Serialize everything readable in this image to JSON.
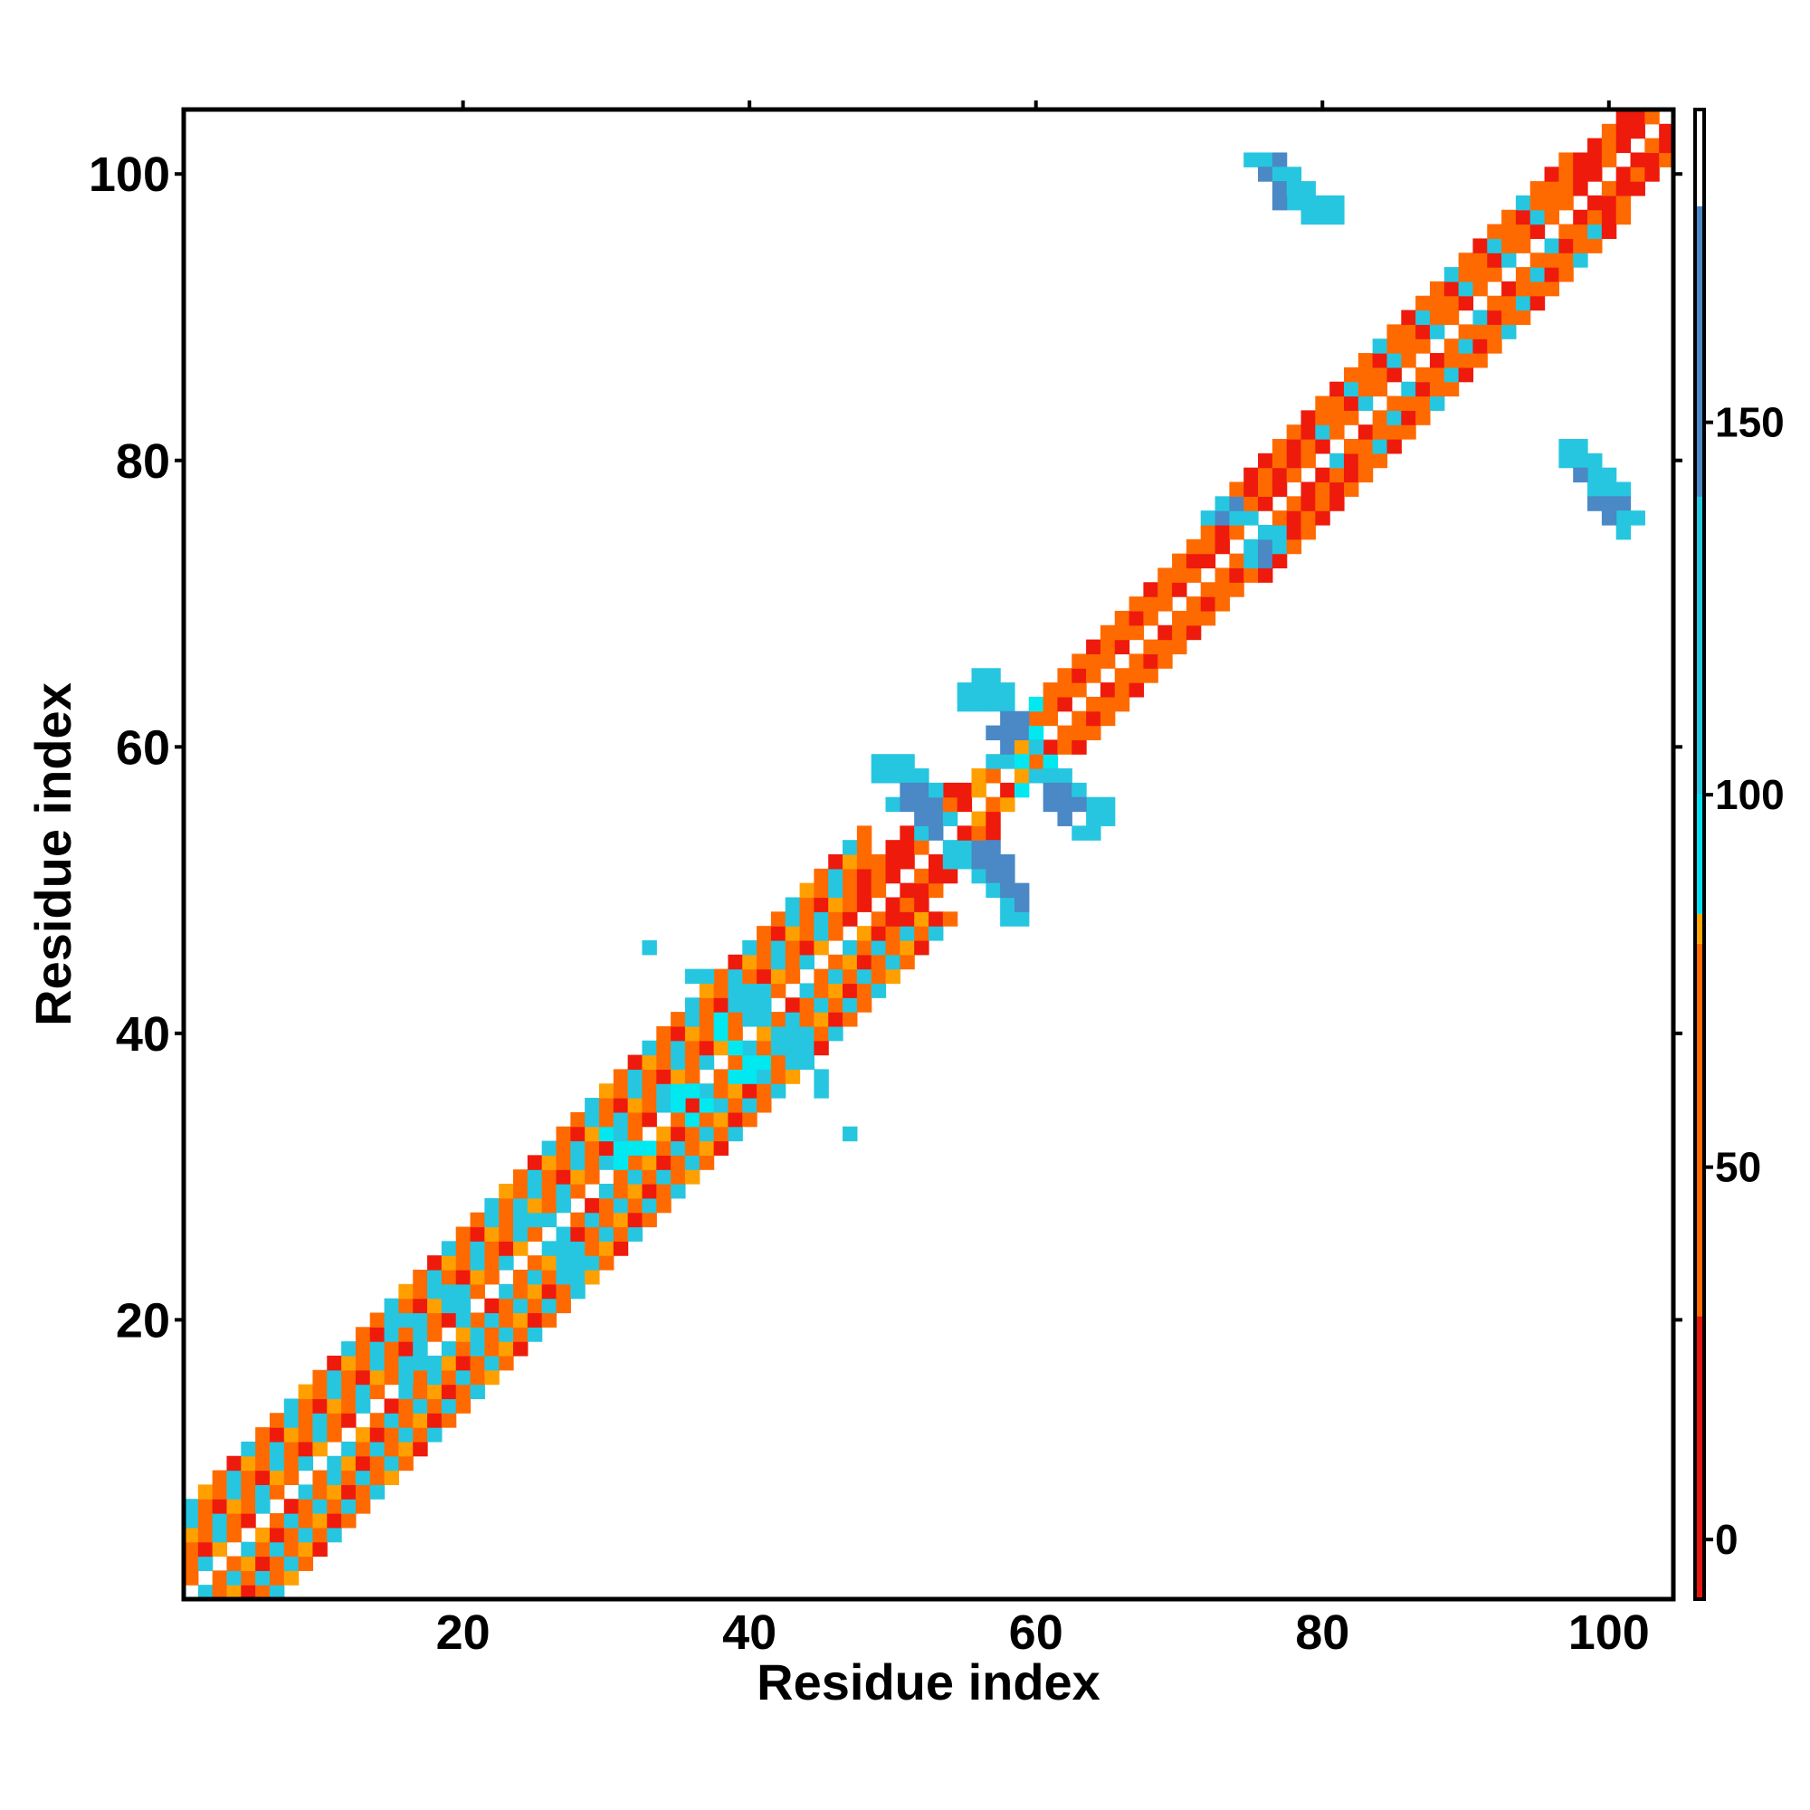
{
  "chart_data": {
    "type": "heatmap",
    "title": "",
    "xlabel": "Residue index",
    "ylabel": "Residue index",
    "xlim": [
      1,
      104
    ],
    "ylim": [
      1,
      104
    ],
    "x_ticks": [
      20,
      40,
      60,
      80,
      100
    ],
    "y_ticks": [
      20,
      40,
      60,
      80,
      100
    ],
    "grid": false,
    "legend": "none",
    "colorbar": {
      "position": "right",
      "range": [
        -8,
        192
      ],
      "ticks": [
        0,
        50,
        100,
        150
      ],
      "colors": [
        {
          "from": -8,
          "to": 30,
          "color": "#e8150c"
        },
        {
          "from": 30,
          "to": 80,
          "color": "#ff6a00"
        },
        {
          "from": 80,
          "to": 84,
          "color": "#ffa500"
        },
        {
          "from": 84,
          "to": 100,
          "color": "#00e0f0"
        },
        {
          "from": 100,
          "to": 140,
          "color": "#26c6e0"
        },
        {
          "from": 140,
          "to": 179,
          "color": "#4a8ac8"
        },
        {
          "from": 179,
          "to": 192,
          "color": "#ffffff"
        }
      ]
    },
    "palette": {
      "R": "#ee1a0c",
      "O": "#ff6a00",
      "A": "#ffa000",
      "T": "#00e8f0",
      "C": "#26c6e0",
      "B": "#4a88c6"
    },
    "value_legend": {
      "R": 10,
      "O": 50,
      "A": 82,
      "T": 92,
      "C": 120,
      "B": 160
    },
    "diagonal_bands": [
      {
        "from": 1,
        "to": 48,
        "offsets": [
          1,
          2,
          3,
          4,
          5,
          6
        ],
        "pattern": "O,R,C,O,O,C,A"
      },
      {
        "from": 48,
        "to": 54,
        "offsets": [
          1,
          2,
          3
        ],
        "pattern": "R,O,R"
      },
      {
        "from": 54,
        "to": 60,
        "offsets": [
          1,
          2
        ],
        "pattern": "O,R,A"
      },
      {
        "from": 60,
        "to": 72,
        "offsets": [
          1,
          2,
          3
        ],
        "pattern": "O,R,O,O"
      },
      {
        "from": 72,
        "to": 80,
        "offsets": [
          1,
          2,
          3,
          4
        ],
        "pattern": "R,O,O,R"
      },
      {
        "from": 80,
        "to": 97,
        "offsets": [
          1,
          2,
          3,
          4
        ],
        "pattern": "O,C,O,R,O"
      },
      {
        "from": 97,
        "to": 104,
        "offsets": [
          1,
          2,
          3
        ],
        "pattern": "R,O,R"
      }
    ],
    "blobs": [
      {
        "c": "C",
        "cells": [
          [
            56,
            65
          ],
          [
            57,
            65
          ],
          [
            55,
            64
          ],
          [
            56,
            64
          ],
          [
            57,
            64
          ],
          [
            58,
            64
          ],
          [
            55,
            63
          ],
          [
            56,
            63
          ],
          [
            57,
            63
          ],
          [
            58,
            63
          ],
          [
            58,
            62
          ],
          [
            57,
            61
          ],
          [
            58,
            61
          ],
          [
            59,
            61
          ],
          [
            60,
            60
          ],
          [
            57,
            59
          ],
          [
            58,
            59
          ]
        ]
      },
      {
        "c": "B",
        "cells": [
          [
            58,
            62
          ],
          [
            59,
            62
          ],
          [
            57,
            61
          ],
          [
            58,
            61
          ],
          [
            59,
            61
          ],
          [
            58,
            60
          ]
        ]
      },
      {
        "c": "T",
        "cells": [
          [
            60,
            63
          ],
          [
            60,
            61
          ],
          [
            59,
            59
          ],
          [
            61,
            59
          ],
          [
            61,
            58
          ],
          [
            59,
            57
          ]
        ]
      },
      {
        "c": "C",
        "cells": [
          [
            49,
            59
          ],
          [
            50,
            59
          ],
          [
            51,
            59
          ],
          [
            49,
            58
          ],
          [
            50,
            58
          ],
          [
            51,
            58
          ],
          [
            52,
            58
          ],
          [
            52,
            57
          ],
          [
            53,
            57
          ],
          [
            50,
            56
          ],
          [
            53,
            56
          ],
          [
            54,
            55
          ],
          [
            52,
            54
          ],
          [
            53,
            54
          ]
        ]
      },
      {
        "c": "B",
        "cells": [
          [
            51,
            57
          ],
          [
            52,
            57
          ],
          [
            51,
            56
          ],
          [
            52,
            56
          ],
          [
            53,
            56
          ],
          [
            52,
            55
          ],
          [
            53,
            55
          ],
          [
            53,
            54
          ]
        ]
      },
      {
        "c": "C",
        "cells": [
          [
            60,
            58
          ],
          [
            61,
            58
          ],
          [
            62,
            58
          ],
          [
            62,
            57
          ],
          [
            63,
            57
          ],
          [
            64,
            56
          ],
          [
            65,
            56
          ],
          [
            64,
            55
          ],
          [
            65,
            55
          ],
          [
            63,
            54
          ],
          [
            64,
            54
          ]
        ]
      },
      {
        "c": "B",
        "cells": [
          [
            61,
            57
          ],
          [
            62,
            57
          ],
          [
            61,
            56
          ],
          [
            62,
            56
          ],
          [
            63,
            56
          ],
          [
            62,
            55
          ]
        ]
      },
      {
        "c": "C",
        "cells": [
          [
            54,
            53
          ],
          [
            55,
            53
          ],
          [
            54,
            52
          ],
          [
            55,
            52
          ],
          [
            56,
            51
          ],
          [
            57,
            51
          ],
          [
            57,
            50
          ],
          [
            58,
            49
          ],
          [
            59,
            48
          ],
          [
            58,
            48
          ]
        ]
      },
      {
        "c": "B",
        "cells": [
          [
            56,
            53
          ],
          [
            57,
            53
          ],
          [
            56,
            52
          ],
          [
            57,
            52
          ],
          [
            58,
            52
          ],
          [
            57,
            51
          ],
          [
            58,
            51
          ],
          [
            58,
            50
          ],
          [
            59,
            50
          ],
          [
            59,
            49
          ]
        ]
      },
      {
        "c": "C",
        "cells": [
          [
            33,
            46
          ],
          [
            36,
            44
          ],
          [
            37,
            44
          ],
          [
            47,
            33
          ],
          [
            45,
            36
          ],
          [
            45,
            37
          ],
          [
            39,
            43
          ],
          [
            40,
            43
          ],
          [
            39,
            42
          ],
          [
            40,
            42
          ],
          [
            41,
            42
          ],
          [
            40,
            41
          ],
          [
            41,
            41
          ],
          [
            42,
            40
          ],
          [
            43,
            40
          ],
          [
            44,
            39
          ],
          [
            43,
            39
          ],
          [
            44,
            38
          ]
        ]
      },
      {
        "c": "T",
        "cells": [
          [
            38,
            41
          ],
          [
            38,
            40
          ],
          [
            39,
            39
          ],
          [
            40,
            38
          ],
          [
            41,
            38
          ],
          [
            40,
            37
          ],
          [
            39,
            37
          ]
        ]
      },
      {
        "c": "C",
        "cells": [
          [
            24,
            28
          ],
          [
            24,
            27
          ],
          [
            25,
            27
          ],
          [
            26,
            27
          ],
          [
            27,
            26
          ],
          [
            27,
            25
          ],
          [
            28,
            25
          ],
          [
            27,
            24
          ],
          [
            28,
            24
          ],
          [
            27,
            23
          ],
          [
            28,
            23
          ],
          [
            29,
            24
          ]
        ]
      },
      {
        "c": "T",
        "cells": [
          [
            35,
            36
          ],
          [
            36,
            36
          ],
          [
            35,
            35
          ],
          [
            36,
            34
          ],
          [
            37,
            35
          ],
          [
            31,
            32
          ],
          [
            32,
            32
          ],
          [
            30,
            33
          ],
          [
            31,
            31
          ],
          [
            33,
            32
          ]
        ]
      },
      {
        "c": "C",
        "cells": [
          [
            18,
            22
          ],
          [
            19,
            22
          ],
          [
            19,
            21
          ],
          [
            20,
            20
          ],
          [
            17,
            18
          ],
          [
            17,
            17
          ],
          [
            18,
            17
          ],
          [
            16,
            16
          ],
          [
            12,
            11
          ],
          [
            11,
            10
          ],
          [
            14,
            18
          ],
          [
            15,
            19
          ],
          [
            16,
            20
          ],
          [
            21,
            19
          ]
        ]
      },
      {
        "c": "C",
        "cells": [
          [
            75,
            101
          ],
          [
            76,
            101
          ],
          [
            77,
            101
          ],
          [
            76,
            100
          ],
          [
            77,
            100
          ],
          [
            78,
            100
          ],
          [
            77,
            99
          ],
          [
            78,
            99
          ],
          [
            79,
            99
          ],
          [
            78,
            98
          ],
          [
            79,
            98
          ],
          [
            80,
            98
          ],
          [
            81,
            98
          ],
          [
            80,
            97
          ],
          [
            81,
            97
          ],
          [
            79,
            97
          ]
        ]
      },
      {
        "c": "B",
        "cells": [
          [
            77,
            101
          ],
          [
            76,
            100
          ],
          [
            77,
            99
          ],
          [
            77,
            98
          ]
        ]
      },
      {
        "c": "C",
        "cells": [
          [
            97,
            81
          ],
          [
            98,
            81
          ],
          [
            97,
            80
          ],
          [
            98,
            80
          ],
          [
            99,
            80
          ],
          [
            99,
            79
          ],
          [
            100,
            79
          ],
          [
            99,
            78
          ],
          [
            100,
            78
          ],
          [
            101,
            78
          ],
          [
            101,
            77
          ],
          [
            101,
            76
          ],
          [
            102,
            76
          ],
          [
            101,
            75
          ]
        ]
      },
      {
        "c": "B",
        "cells": [
          [
            99,
            77
          ],
          [
            100,
            77
          ],
          [
            101,
            77
          ],
          [
            100,
            76
          ],
          [
            98,
            79
          ]
        ]
      },
      {
        "c": "C",
        "cells": [
          [
            73,
            77
          ],
          [
            74,
            77
          ],
          [
            72,
            76
          ],
          [
            73,
            76
          ],
          [
            74,
            76
          ],
          [
            75,
            76
          ],
          [
            76,
            75
          ],
          [
            77,
            75
          ],
          [
            75,
            74
          ],
          [
            76,
            74
          ],
          [
            77,
            74
          ],
          [
            75,
            73
          ],
          [
            76,
            73
          ]
        ]
      },
      {
        "c": "B",
        "cells": [
          [
            74,
            77
          ],
          [
            73,
            76
          ],
          [
            76,
            74
          ],
          [
            76,
            73
          ]
        ]
      }
    ]
  }
}
